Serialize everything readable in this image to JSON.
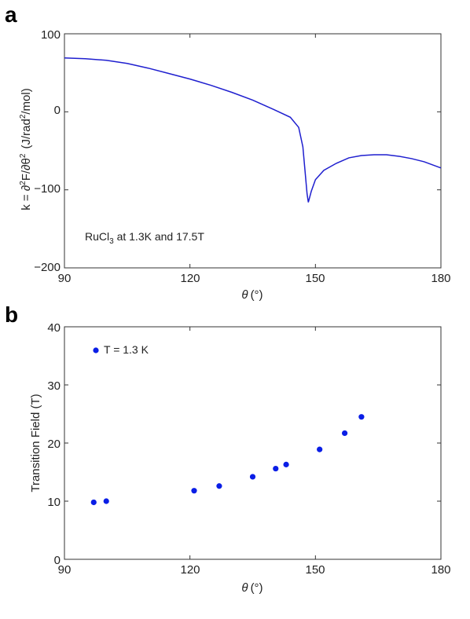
{
  "chart_data": [
    {
      "type": "line",
      "panel_label": "a",
      "ylabel": "k = ∂²F/∂θ² (J/rad²/mol)",
      "ylabel_parts": {
        "lead": "k = ∂",
        "s1": "2",
        "mid": "F/∂θ",
        "s2": "2",
        "paren": "(J/rad",
        "s3": "2",
        "tail": "/mol)"
      },
      "xlabel_parts": {
        "theta": "θ",
        "deg": "(°)"
      },
      "annotation_parts": {
        "main": "RuCl",
        "sub": "3",
        "rest": " at 1.3K and 17.5T"
      },
      "xlim": [
        90,
        180
      ],
      "ylim": [
        -200,
        100
      ],
      "xticks": [
        "90",
        "120",
        "150",
        "180"
      ],
      "yticks": [
        "100",
        "0",
        "−100",
        "−200"
      ],
      "line_color": "#1f1fcf",
      "series": [
        {
          "x": [
            90,
            95,
            100,
            105,
            110,
            115,
            120,
            125,
            130,
            135,
            140,
            144,
            146,
            147,
            147.5,
            148,
            148.3,
            149,
            150,
            152,
            155,
            158,
            161,
            164,
            167,
            170,
            173,
            176,
            180
          ],
          "y": [
            69,
            68,
            66,
            62,
            56,
            49,
            42,
            34,
            25,
            15,
            3,
            -7,
            -20,
            -45,
            -75,
            -105,
            -116,
            -102,
            -87,
            -75,
            -66,
            -59,
            -56,
            -55,
            -55,
            -57,
            -60,
            -64,
            -72
          ]
        }
      ]
    },
    {
      "type": "scatter",
      "panel_label": "b",
      "ylabel": "Transition Field (T)",
      "xlabel_parts": {
        "theta": "θ",
        "deg": "(°)"
      },
      "xlim": [
        90,
        180
      ],
      "ylim": [
        0,
        40
      ],
      "xticks": [
        "90",
        "120",
        "150",
        "180"
      ],
      "yticks": [
        "40",
        "30",
        "20",
        "10",
        "0"
      ],
      "marker_color": "#0a1ee6",
      "legend": "T = 1.3 K",
      "legend_position": "top-left",
      "series": [
        {
          "name": "T = 1.3 K",
          "x": [
            97,
            100,
            121,
            127,
            135,
            140.5,
            143,
            151,
            157,
            161
          ],
          "y": [
            9.8,
            10,
            11.8,
            12.6,
            14.2,
            15.6,
            16.3,
            18.9,
            21.7,
            24.5
          ]
        }
      ]
    }
  ]
}
